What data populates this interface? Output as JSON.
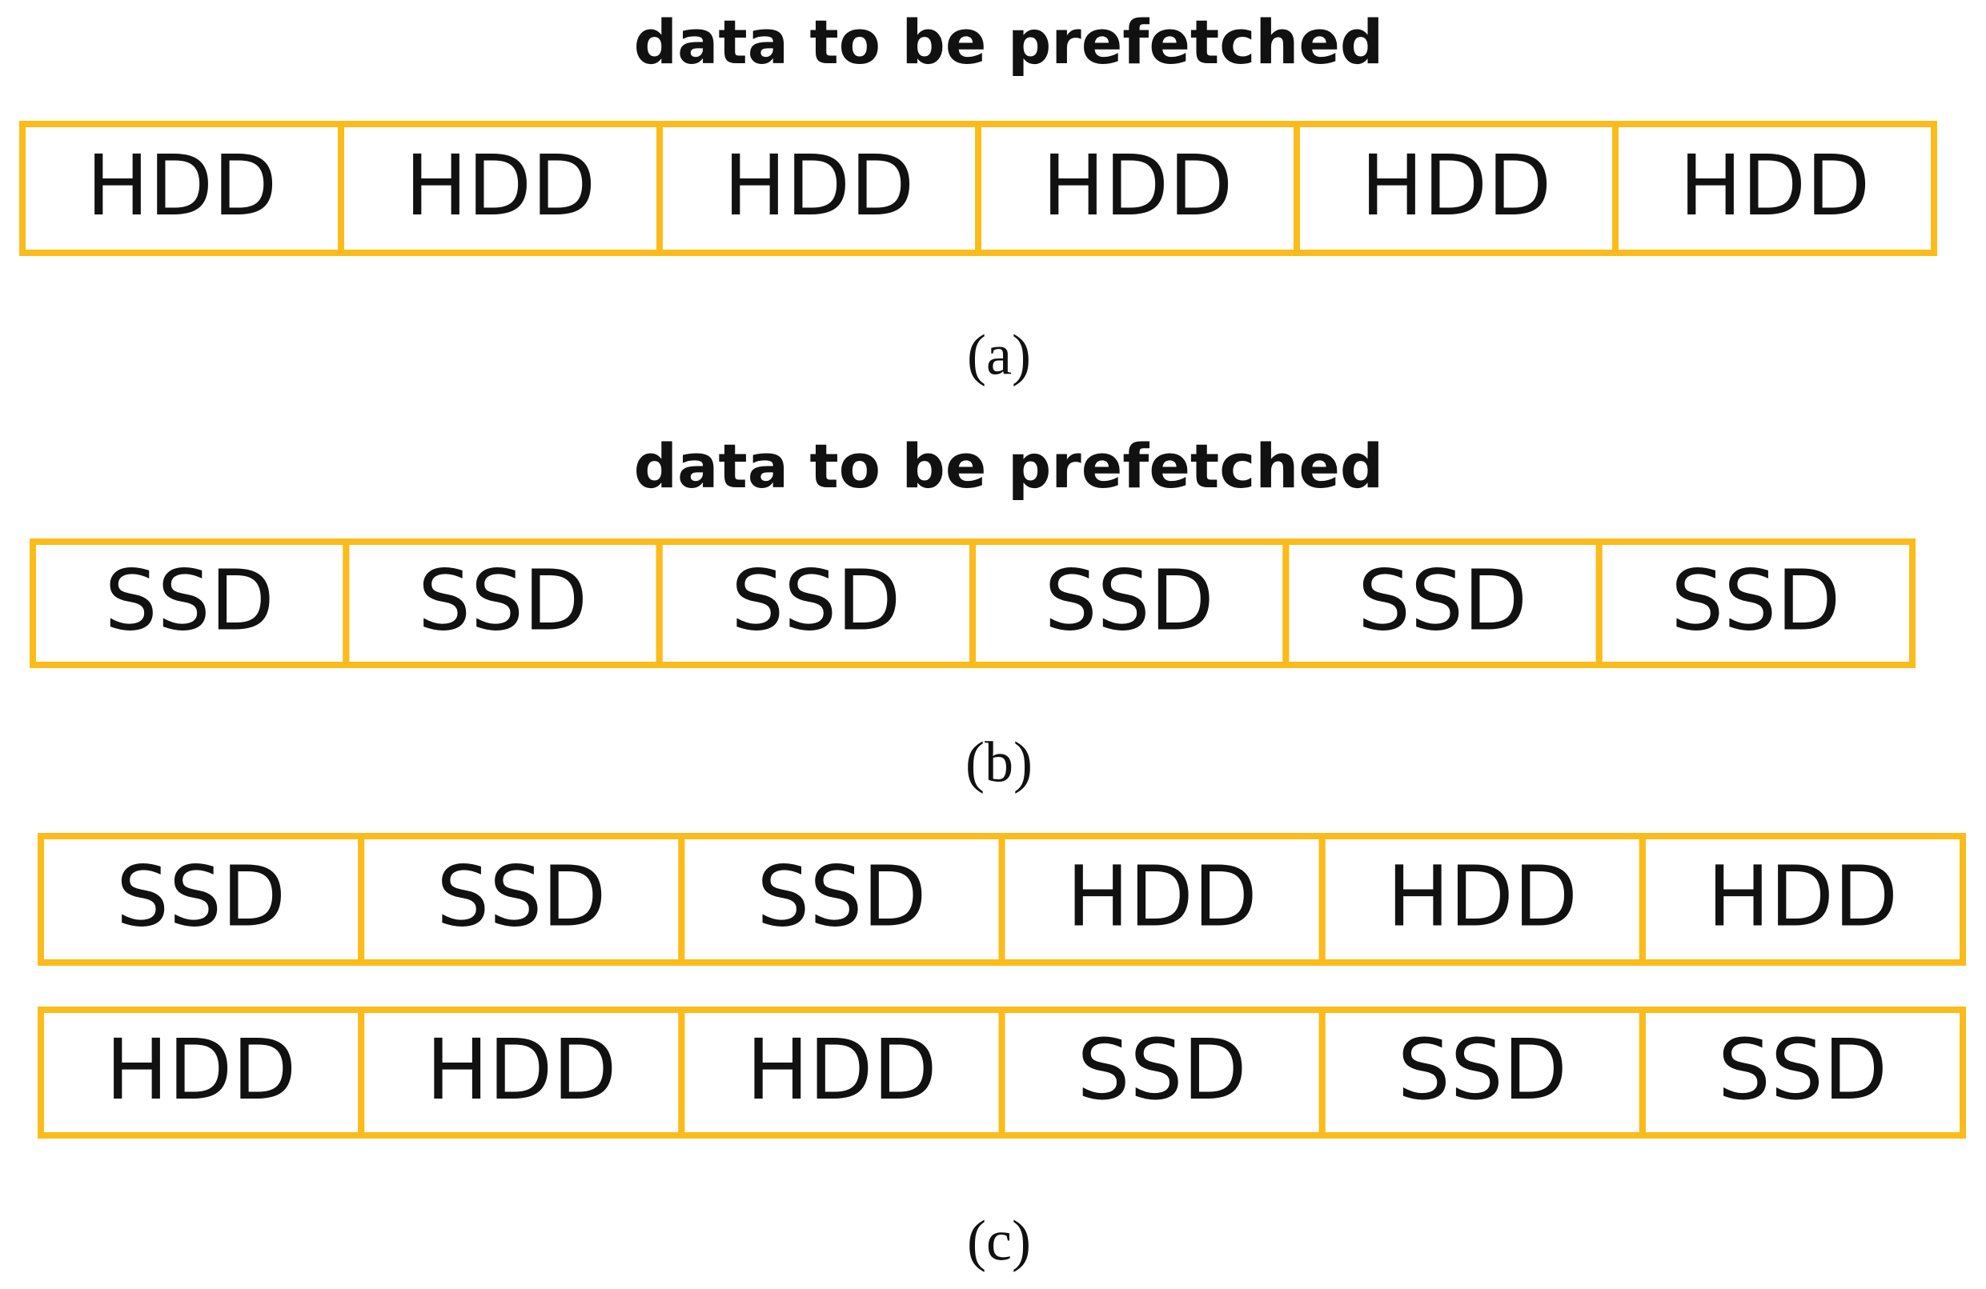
{
  "panels": [
    {
      "title": "data to be prefetched",
      "rows": [
        [
          "HDD",
          "HDD",
          "HDD",
          "HDD",
          "HDD",
          "HDD"
        ]
      ],
      "caption": "(a)"
    },
    {
      "title": "data to be prefetched",
      "rows": [
        [
          "SSD",
          "SSD",
          "SSD",
          "SSD",
          "SSD",
          "SSD"
        ]
      ],
      "caption": "(b)"
    },
    {
      "rows": [
        [
          "SSD",
          "SSD",
          "SSD",
          "HDD",
          "HDD",
          "HDD"
        ],
        [
          "HDD",
          "HDD",
          "HDD",
          "SSD",
          "SSD",
          "SSD"
        ]
      ],
      "caption": "(c)"
    }
  ]
}
